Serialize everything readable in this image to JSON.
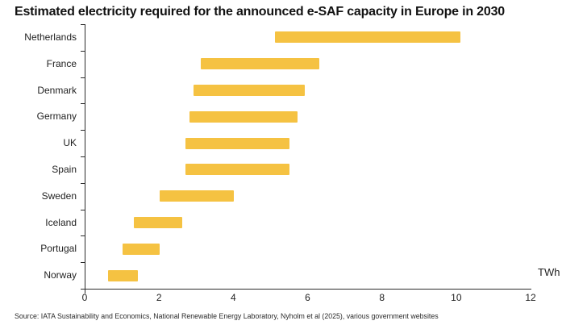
{
  "page": {
    "title": "Estimated electricity required for the announced e-SAF capacity in Europe in 2030",
    "source_note": "Source: IATA Sustainability and Economics, National Renewable Energy Laboratory, Nyholm et al (2025), various government websites",
    "axis_unit_label": "TWh"
  },
  "colors": {
    "bar": "#F5C242",
    "axis": "#2B2B2B",
    "title_text": "#121212",
    "label_text": "#222222"
  },
  "chart_data": {
    "type": "bar",
    "orientation": "horizontal",
    "bar_style": "floating_range",
    "title": "Estimated electricity required for the announced e-SAF capacity in Europe in 2030",
    "xlabel": "TWh",
    "ylabel": "",
    "xlim": [
      0,
      12
    ],
    "xticks": [
      0,
      2,
      4,
      6,
      8,
      10,
      12
    ],
    "grid": false,
    "legend": false,
    "categories": [
      "Netherlands",
      "France",
      "Denmark",
      "Germany",
      "UK",
      "Spain",
      "Sweden",
      "Iceland",
      "Portugal",
      "Norway"
    ],
    "series": [
      {
        "name": "Estimated electricity required for announced e-SAF capacity (range, TWh)",
        "ranges_twh": [
          [
            5.1,
            10.1
          ],
          [
            3.1,
            6.3
          ],
          [
            2.9,
            5.9
          ],
          [
            2.8,
            5.7
          ],
          [
            2.7,
            5.5
          ],
          [
            2.7,
            5.5
          ],
          [
            2.0,
            4.0
          ],
          [
            1.3,
            2.6
          ],
          [
            1.0,
            2.0
          ],
          [
            0.6,
            1.4
          ]
        ]
      }
    ]
  }
}
